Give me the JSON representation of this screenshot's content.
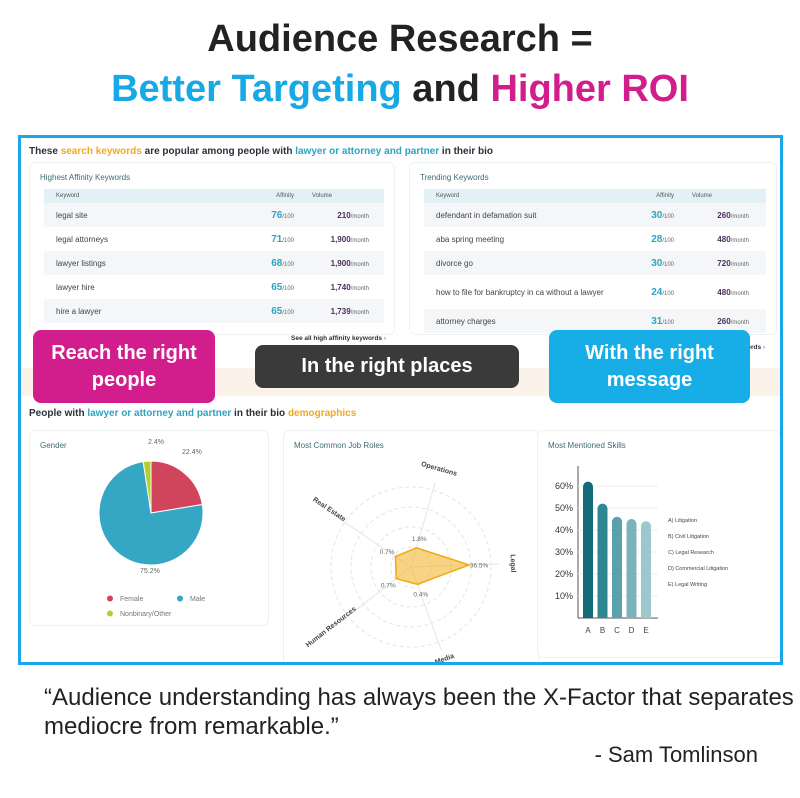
{
  "headline": {
    "line1": "Audience Research =",
    "line2_a": "Better Targeting",
    "line2_b": " and ",
    "line2_c": "Higher ROI"
  },
  "keywords_section": {
    "s1": "These ",
    "s2": "search keywords",
    "s3": " are popular among people with ",
    "s4": "lawyer or attorney and partner",
    "s5": " in their bio"
  },
  "columns": {
    "keyword": "Keyword",
    "affinity": "Affinity",
    "volume": "Volume",
    "affinity_suffix": "/100",
    "volume_suffix": "/month"
  },
  "highest": {
    "title": "Highest Affinity Keywords",
    "see_all": "See all high affinity keywords",
    "rows": [
      {
        "keyword": "legal site",
        "affinity": "76",
        "volume": "210"
      },
      {
        "keyword": "legal attorneys",
        "affinity": "71",
        "volume": "1,900"
      },
      {
        "keyword": "lawyer listings",
        "affinity": "68",
        "volume": "1,900"
      },
      {
        "keyword": "lawyer hire",
        "affinity": "65",
        "volume": "1,740"
      },
      {
        "keyword": "hire a lawyer",
        "affinity": "65",
        "volume": "1,739"
      }
    ]
  },
  "trending": {
    "title": "Trending Keywords",
    "see_all": "ords",
    "rows": [
      {
        "keyword": "defendant in defamation suit",
        "affinity": "30",
        "volume": "260"
      },
      {
        "keyword": "aba spring meeting",
        "affinity": "28",
        "volume": "480"
      },
      {
        "keyword": "divorce go",
        "affinity": "30",
        "volume": "720"
      },
      {
        "keyword": "how to file for bankruptcy in ca without a lawyer",
        "affinity": "24",
        "volume": "480"
      },
      {
        "keyword": "attorney charges",
        "affinity": "31",
        "volume": "260"
      }
    ]
  },
  "overlays": {
    "reach": "Reach the right people",
    "places": "In the right places",
    "message": "With the right message"
  },
  "overlay_colors": {
    "reach": "#d21e8c",
    "places": "#3a3a3a",
    "message": "#17aee8"
  },
  "demo_section": {
    "s1": "People with ",
    "s2": "lawyer or attorney and partner",
    "s3": " in their bio ",
    "s4": "demographics"
  },
  "chart_data": [
    {
      "type": "pie",
      "title": "Gender",
      "slices": [
        {
          "name": "Female",
          "value": 22.4,
          "label": "22.4%",
          "color": "#d1455c"
        },
        {
          "name": "Male",
          "value": 75.2,
          "label": "75.2%",
          "color": "#35a7c4"
        },
        {
          "name": "Nonbinary/Other",
          "value": 2.4,
          "label": "2.4%",
          "color": "#b5cf2c"
        }
      ],
      "legend": "bottom"
    },
    {
      "type": "radar",
      "title": "Most Common Job Roles",
      "axes": [
        {
          "name": "Legal",
          "value": 36.5,
          "label": "36.5%"
        },
        {
          "name": "Media",
          "value": 0.4,
          "label": "0.4%"
        },
        {
          "name": "Human Resources",
          "value": 0.7,
          "label": "0.7%"
        },
        {
          "name": "Real Estate",
          "value": 0.7,
          "label": "0.7%"
        },
        {
          "name": "Operations",
          "value": 1.8,
          "label": "1.8%"
        }
      ],
      "color": "#f2b632"
    },
    {
      "type": "bar",
      "title": "Most Mentioned Skills",
      "categories": [
        "A",
        "B",
        "C",
        "D",
        "E"
      ],
      "values": [
        62,
        52,
        46,
        45,
        44
      ],
      "yticks": [
        "10%",
        "20%",
        "30%",
        "40%",
        "50%",
        "60%"
      ],
      "ylim": [
        0,
        70
      ],
      "grid": true,
      "legend": [
        "A) Litigation",
        "B) Civil Litigation",
        "C) Legal Research",
        "D) Commercial Litigation",
        "E) Legal Writing"
      ],
      "colors": [
        "#136b7a",
        "#2f8791",
        "#5aa1ab",
        "#7bb3bb",
        "#9cc7cd"
      ]
    }
  ],
  "quote": {
    "text": "“Audience understanding has always been the X-Factor that separates mediocre from remarkable.”",
    "author": "- Sam Tomlinson"
  }
}
